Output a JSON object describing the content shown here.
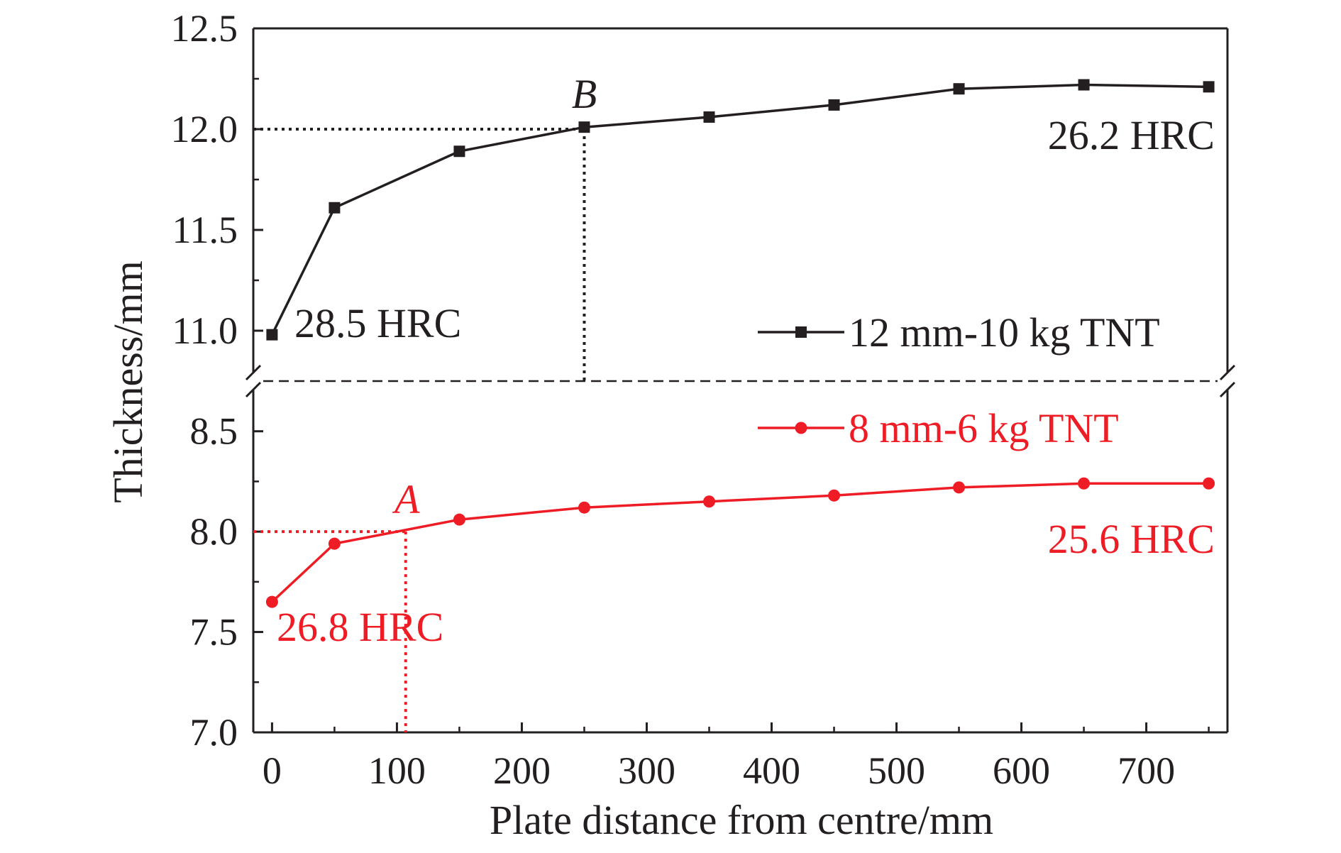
{
  "chart_data": {
    "type": "line",
    "xlabel": "Plate distance from centre/mm",
    "ylabel": "Thickness/mm",
    "x_ticks": [
      0,
      100,
      200,
      300,
      400,
      500,
      600,
      700
    ],
    "xlim": [
      -15,
      765
    ],
    "y_axis_broken": true,
    "upper_ylim": [
      10.75,
      12.5
    ],
    "lower_ylim": [
      7.0,
      8.75
    ],
    "upper_y_ticks": [
      "11.0",
      "11.5",
      "12.0",
      "12.5"
    ],
    "lower_y_ticks": [
      "7.0",
      "7.5",
      "8.0",
      "8.5"
    ],
    "grid": false,
    "legend_position": "right",
    "series": [
      {
        "name": "12 mm-10 kg TNT",
        "color": "#231f20",
        "marker": "square",
        "x": [
          0,
          50,
          150,
          250,
          350,
          450,
          550,
          650,
          750
        ],
        "y": [
          10.98,
          11.61,
          11.89,
          12.01,
          12.06,
          12.12,
          12.2,
          12.22,
          12.21
        ]
      },
      {
        "name": "8 mm-6 kg TNT",
        "color": "#ee1c25",
        "marker": "circle",
        "x": [
          0,
          50,
          150,
          250,
          350,
          450,
          550,
          650,
          750
        ],
        "y": [
          7.65,
          7.94,
          8.06,
          8.12,
          8.15,
          8.18,
          8.22,
          8.24,
          8.24
        ]
      }
    ],
    "reference_points": [
      {
        "label": "B",
        "x": 250,
        "y": 12.0,
        "color": "#231f20"
      },
      {
        "label": "A",
        "x": 107,
        "y": 8.0,
        "color": "#ee1c25"
      }
    ],
    "annotations": [
      {
        "text": "28.5 HRC",
        "color": "#231f20"
      },
      {
        "text": "26.2 HRC",
        "color": "#231f20"
      },
      {
        "text": "26.8 HRC",
        "color": "#ee1c25"
      },
      {
        "text": "25.6 HRC",
        "color": "#ee1c25"
      }
    ]
  }
}
